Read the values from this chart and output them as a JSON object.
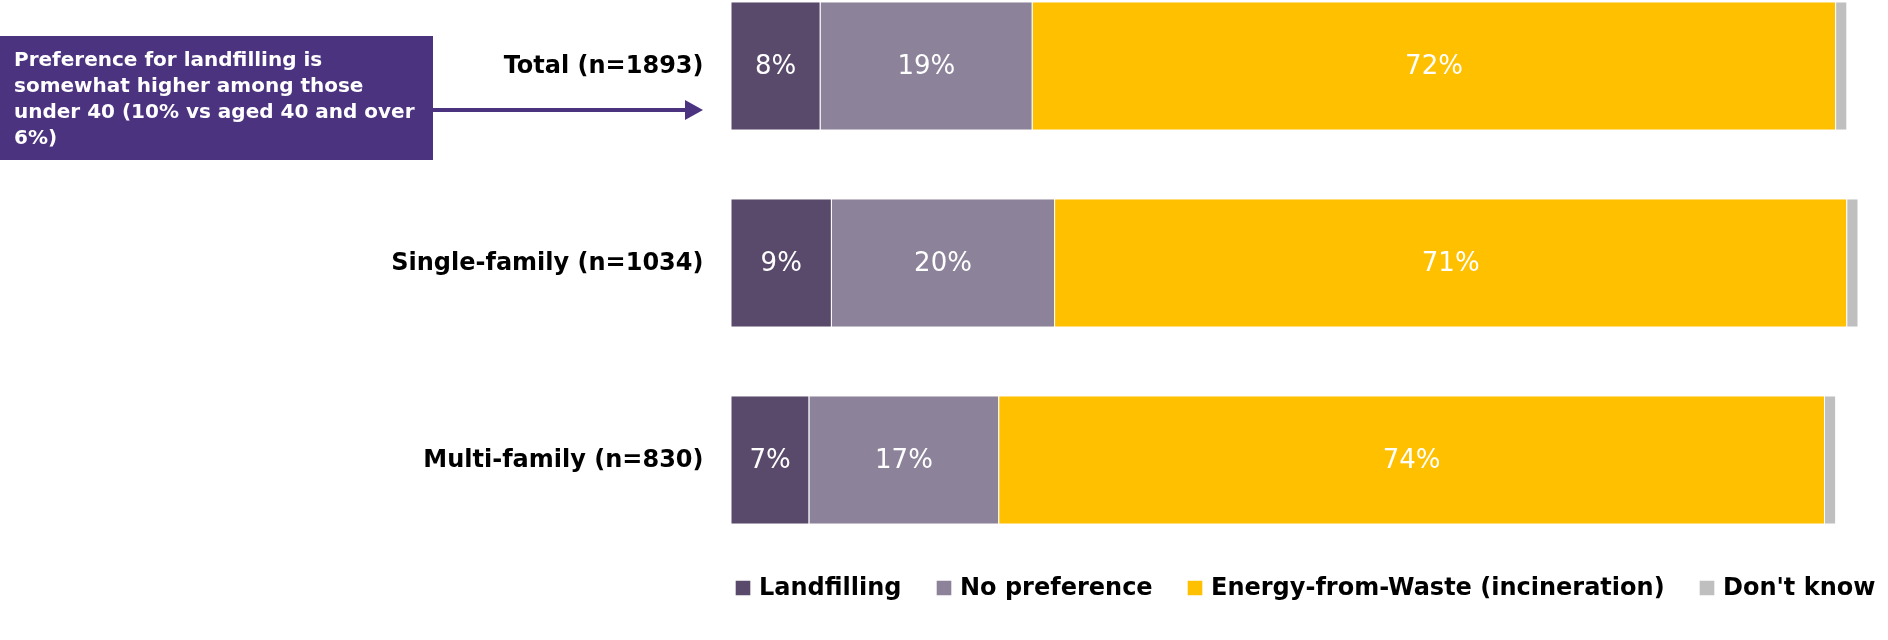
{
  "chart_data": {
    "type": "bar",
    "orientation": "horizontal",
    "stacked": true,
    "categories": [
      "Total (n=1893)",
      "Single-family (n=1034)",
      "Multi-family (n=830)"
    ],
    "series": [
      {
        "name": "Landfilling",
        "color": "#594a6b",
        "values": [
          8,
          9,
          7
        ],
        "value_labels": [
          "8%",
          "9%",
          "7%"
        ]
      },
      {
        "name": "No preference",
        "color": "#8c8299",
        "values": [
          19,
          20,
          17
        ],
        "value_labels": [
          "19%",
          "20%",
          "17%"
        ]
      },
      {
        "name": "Energy-from-Waste (incineration)",
        "color": "#ffc000",
        "values": [
          72,
          71,
          74
        ],
        "value_labels": [
          "72%",
          "71%",
          "74%"
        ]
      },
      {
        "name": "Don't know",
        "color": "#bfbfbf",
        "values": [
          1,
          1,
          1
        ],
        "value_labels": [
          null,
          null,
          null
        ]
      }
    ],
    "xlim": [
      0,
      101
    ],
    "tick_labels": "y",
    "legend": "bottom",
    "grid": false,
    "annotations": [
      "Preference for landfilling is somewhat higher among those under 40 (10% vs aged 40 and over 6%)"
    ]
  }
}
